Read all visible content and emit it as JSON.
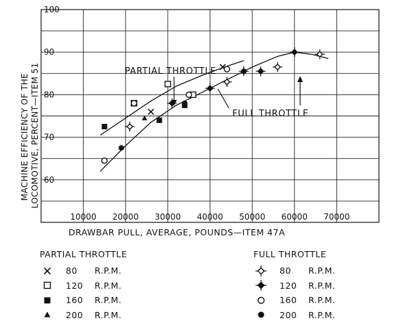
{
  "chart_data": {
    "type": "scatter",
    "xlabel": "DRAWBAR PULL, AVERAGE, POUNDS—ITEM 47A",
    "ylabel": "MACHINE EFFICIENCY OF THE LOCOMOTIVE, PERCENT—ITEM 51",
    "xlim": [
      0,
      80000
    ],
    "ylim": [
      50,
      100
    ],
    "x_ticks": [
      "10000",
      "20000",
      "30000",
      "40000",
      "50000",
      "60000",
      "70000"
    ],
    "y_ticks": [
      "60",
      "70",
      "80",
      "90",
      "100"
    ],
    "grid": true,
    "annotations": [
      "PARTIAL THROTTLE",
      "FULL THROTTLE"
    ],
    "curves": [
      {
        "name": "PARTIAL THROTTLE",
        "x": [
          14000,
          20000,
          26000,
          32000,
          38000,
          44000,
          48000
        ],
        "y": [
          70.5,
          74.5,
          78.5,
          82,
          84.5,
          86.7,
          88
        ]
      },
      {
        "name": "FULL THROTTLE",
        "x": [
          14000,
          20000,
          26000,
          32000,
          38000,
          44000,
          50000,
          56000,
          60000,
          64000,
          68000
        ],
        "y": [
          62,
          68,
          73.5,
          77.5,
          80.5,
          83.5,
          86.5,
          89,
          90,
          89.5,
          88.5
        ]
      }
    ],
    "series": [
      {
        "group": "PARTIAL THROTTLE",
        "name": "80 R.P.M.",
        "marker": "x",
        "points": [
          [
            26000,
            76
          ],
          [
            43000,
            86.5
          ]
        ]
      },
      {
        "group": "PARTIAL THROTTLE",
        "name": "120 R.P.M.",
        "marker": "open-square",
        "points": [
          [
            22000,
            78
          ],
          [
            30000,
            82.5
          ],
          [
            36000,
            80
          ]
        ]
      },
      {
        "group": "PARTIAL THROTTLE",
        "name": "160 R.P.M.",
        "marker": "filled-square",
        "points": [
          [
            15000,
            72.5
          ],
          [
            28000,
            74
          ],
          [
            34000,
            77.5
          ]
        ]
      },
      {
        "group": "PARTIAL THROTTLE",
        "name": "200 R.P.M.",
        "marker": "filled-triangle",
        "points": [
          [
            24500,
            74.5
          ]
        ]
      },
      {
        "group": "FULL THROTTLE",
        "name": "80 R.P.M.",
        "marker": "open-diamond-cross",
        "points": [
          [
            21000,
            72.5
          ],
          [
            44000,
            83
          ],
          [
            56000,
            86.5
          ],
          [
            66000,
            89.5
          ]
        ]
      },
      {
        "group": "FULL THROTTLE",
        "name": "120 R.P.M.",
        "marker": "filled-diamond-cross",
        "points": [
          [
            31000,
            78
          ],
          [
            40000,
            81.5
          ],
          [
            48000,
            85.5
          ],
          [
            52000,
            85.5
          ],
          [
            60000,
            90
          ]
        ]
      },
      {
        "group": "FULL THROTTLE",
        "name": "160 R.P.M.",
        "marker": "open-circle",
        "points": [
          [
            15000,
            64.5
          ],
          [
            22000,
            78
          ],
          [
            35000,
            80
          ],
          [
            44000,
            86
          ]
        ]
      },
      {
        "group": "FULL THROTTLE",
        "name": "200 R.P.M.",
        "marker": "filled-circle",
        "points": [
          [
            19000,
            67.5
          ],
          [
            28000,
            74
          ],
          [
            34000,
            78
          ],
          [
            48000,
            85.5
          ]
        ]
      }
    ]
  },
  "legend": {
    "left_title": "PARTIAL  THROTTLE",
    "right_title": "FULL THROTTLE",
    "left": [
      {
        "marker": "x",
        "rpm": "80",
        "unit": "R.P.M."
      },
      {
        "marker": "open-square",
        "rpm": "120",
        "unit": "R.P.M."
      },
      {
        "marker": "filled-square",
        "rpm": "160",
        "unit": "R.P.M."
      },
      {
        "marker": "filled-triangle",
        "rpm": "200",
        "unit": "R.P.M."
      }
    ],
    "right": [
      {
        "marker": "open-diamond-cross",
        "rpm": "80",
        "unit": "R.P.M."
      },
      {
        "marker": "filled-diamond-cross",
        "rpm": "120",
        "unit": "R.P.M."
      },
      {
        "marker": "open-circle",
        "rpm": "160",
        "unit": "R.P.M."
      },
      {
        "marker": "filled-circle",
        "rpm": "200",
        "unit": "R.P.M."
      }
    ]
  }
}
